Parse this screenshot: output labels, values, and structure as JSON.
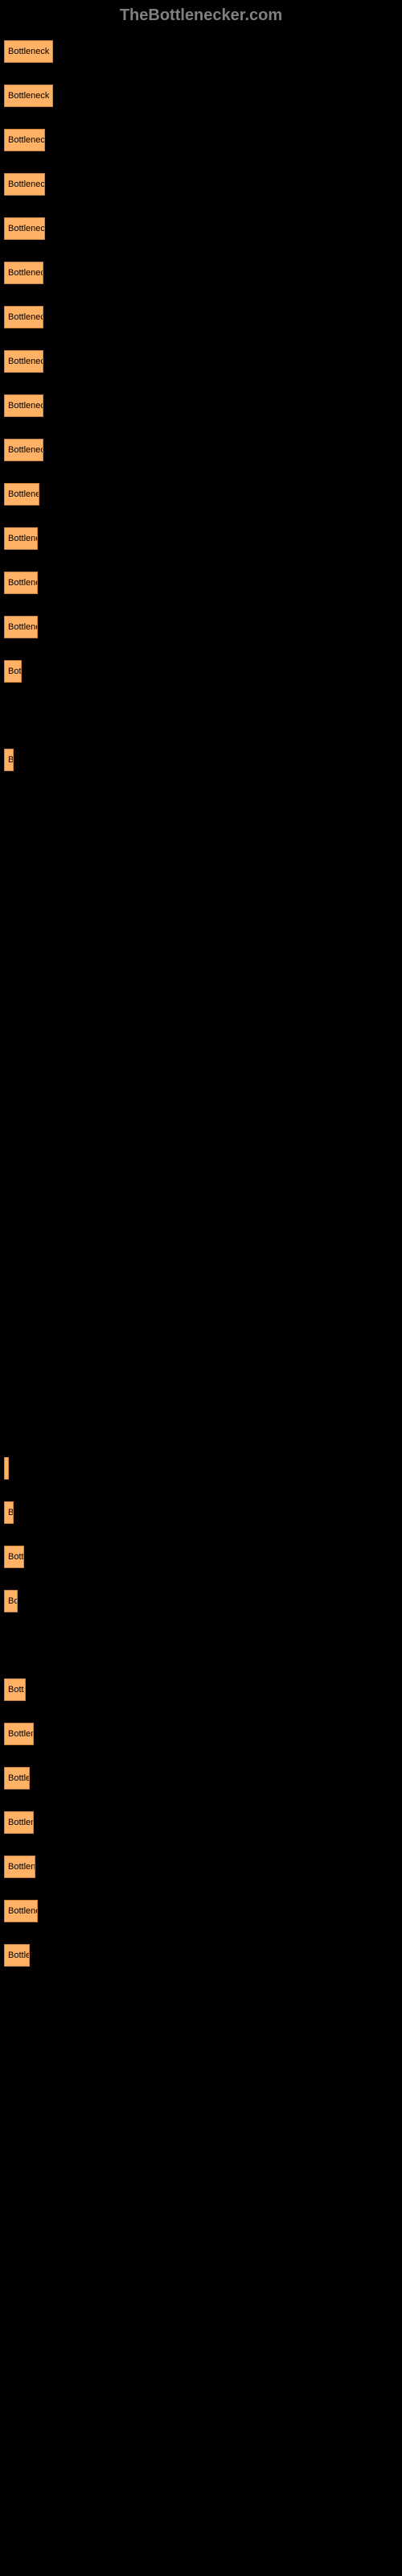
{
  "header": "TheBottlenecker.com",
  "chart": {
    "type": "bar",
    "background_color": "#000000",
    "bar_color": "#ffb266",
    "bar_border_color": "#cc8040",
    "text_color": "#000000",
    "header_color": "#808080",
    "max_width": 490,
    "bars": [
      {
        "label": "Bottleneck n",
        "width_pct": 12.5,
        "show_outside": false
      },
      {
        "label": "Bottleneck n",
        "width_pct": 12.5,
        "show_outside": false
      },
      {
        "label": "Bottleneck",
        "width_pct": 10.5,
        "show_outside": false
      },
      {
        "label": "Bottleneck",
        "width_pct": 10.5,
        "show_outside": false
      },
      {
        "label": "Bottleneck",
        "width_pct": 10.5,
        "show_outside": false
      },
      {
        "label": "Bottleneck",
        "width_pct": 10.0,
        "show_outside": false
      },
      {
        "label": "Bottleneck",
        "width_pct": 10.0,
        "show_outside": false
      },
      {
        "label": "Bottleneck",
        "width_pct": 10.0,
        "show_outside": false
      },
      {
        "label": "Bottleneck",
        "width_pct": 10.0,
        "show_outside": false
      },
      {
        "label": "Bottleneck",
        "width_pct": 10.0,
        "show_outside": false
      },
      {
        "label": "Bottlenec",
        "width_pct": 9.0,
        "show_outside": false
      },
      {
        "label": "Bottlene",
        "width_pct": 8.5,
        "show_outside": false
      },
      {
        "label": "Bottlene",
        "width_pct": 8.5,
        "show_outside": false
      },
      {
        "label": "Bottlene",
        "width_pct": 8.5,
        "show_outside": false
      },
      {
        "label": "Bot",
        "width_pct": 4.5,
        "show_outside": false
      },
      {
        "label": "",
        "width_pct": 0,
        "show_outside": false
      },
      {
        "label": "B",
        "width_pct": 2.5,
        "show_outside": false
      },
      {
        "label": "",
        "width_pct": 0,
        "show_outside": false
      },
      {
        "label": "",
        "width_pct": 0,
        "show_outside": false
      },
      {
        "label": "",
        "width_pct": 0,
        "show_outside": false
      },
      {
        "label": "",
        "width_pct": 0,
        "show_outside": false
      },
      {
        "label": "",
        "width_pct": 0,
        "show_outside": false
      },
      {
        "label": "",
        "width_pct": 0,
        "show_outside": false
      },
      {
        "label": "",
        "width_pct": 0,
        "show_outside": false
      },
      {
        "label": "",
        "width_pct": 0,
        "show_outside": false
      },
      {
        "label": "",
        "width_pct": 0,
        "show_outside": false
      },
      {
        "label": "",
        "width_pct": 0,
        "show_outside": false
      },
      {
        "label": "",
        "width_pct": 0,
        "show_outside": false
      },
      {
        "label": "",
        "width_pct": 0,
        "show_outside": false
      },
      {
        "label": "",
        "width_pct": 0,
        "show_outside": false
      },
      {
        "label": "",
        "width_pct": 0,
        "show_outside": false
      },
      {
        "label": "",
        "width_pct": 0,
        "show_outside": false
      },
      {
        "label": "",
        "width_pct": 1.0,
        "show_outside": false
      },
      {
        "label": "B",
        "width_pct": 2.5,
        "show_outside": false
      },
      {
        "label": "Bott",
        "width_pct": 5.0,
        "show_outside": false
      },
      {
        "label": "Bo",
        "width_pct": 3.5,
        "show_outside": false
      },
      {
        "label": "",
        "width_pct": 0,
        "show_outside": false
      },
      {
        "label": "Bott",
        "width_pct": 5.5,
        "show_outside": false
      },
      {
        "label": "Bottlen",
        "width_pct": 7.5,
        "show_outside": false
      },
      {
        "label": "Bottle",
        "width_pct": 6.5,
        "show_outside": false
      },
      {
        "label": "Bottlen",
        "width_pct": 7.5,
        "show_outside": false
      },
      {
        "label": "Bottlene",
        "width_pct": 8.0,
        "show_outside": false
      },
      {
        "label": "Bottlene",
        "width_pct": 8.5,
        "show_outside": false
      },
      {
        "label": "Bottle",
        "width_pct": 6.5,
        "show_outside": false
      }
    ]
  }
}
